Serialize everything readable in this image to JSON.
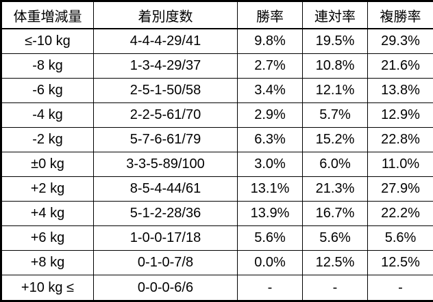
{
  "chart_data": {
    "type": "table",
    "title": "",
    "columns": [
      "体重増減量",
      "着別度数",
      "勝率",
      "連対率",
      "複勝率"
    ],
    "rows": [
      [
        "≤-10 kg",
        "4-4-4-29/41",
        "9.8%",
        "19.5%",
        "29.3%"
      ],
      [
        "-8 kg",
        "1-3-4-29/37",
        "2.7%",
        "10.8%",
        "21.6%"
      ],
      [
        "-6 kg",
        "2-5-1-50/58",
        "3.4%",
        "12.1%",
        "13.8%"
      ],
      [
        "-4 kg",
        "2-2-5-61/70",
        "2.9%",
        "5.7%",
        "12.9%"
      ],
      [
        "-2 kg",
        "5-7-6-61/79",
        "6.3%",
        "15.2%",
        "22.8%"
      ],
      [
        "±0 kg",
        "3-3-5-89/100",
        "3.0%",
        "6.0%",
        "11.0%"
      ],
      [
        "+2 kg",
        "8-5-4-44/61",
        "13.1%",
        "21.3%",
        "27.9%"
      ],
      [
        "+4 kg",
        "5-1-2-28/36",
        "13.9%",
        "16.7%",
        "22.2%"
      ],
      [
        "+6 kg",
        "1-0-0-17/18",
        "5.6%",
        "5.6%",
        "5.6%"
      ],
      [
        "+8 kg",
        "0-1-0-7/8",
        "0.0%",
        "12.5%",
        "12.5%"
      ],
      [
        "+10 kg ≤",
        "0-0-0-6/6",
        "-",
        "-",
        "-"
      ]
    ],
    "layout": {
      "grid": "all-borders",
      "outer_border_color": "#000000",
      "text_color": "#000000",
      "background_color": "#ffffff",
      "alignment": "center"
    }
  }
}
